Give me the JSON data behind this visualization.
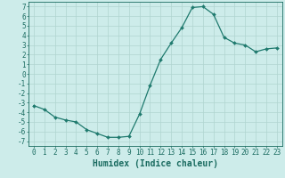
{
  "x": [
    0,
    1,
    2,
    3,
    4,
    5,
    6,
    7,
    8,
    9,
    10,
    11,
    12,
    13,
    14,
    15,
    16,
    17,
    18,
    19,
    20,
    21,
    22,
    23
  ],
  "y": [
    -3.3,
    -3.7,
    -4.5,
    -4.8,
    -5.0,
    -5.8,
    -6.2,
    -6.6,
    -6.6,
    -6.5,
    -4.2,
    -1.2,
    1.5,
    3.2,
    4.8,
    6.9,
    7.0,
    6.2,
    3.8,
    3.2,
    3.0,
    2.3,
    2.6,
    2.7
  ],
  "line_color": "#1f7a6e",
  "marker": "D",
  "marker_size": 2.0,
  "bg_color": "#cdecea",
  "grid_color": "#b0d4d0",
  "xlabel": "Humidex (Indice chaleur)",
  "xlim": [
    -0.5,
    23.5
  ],
  "ylim": [
    -7.5,
    7.5
  ],
  "yticks": [
    -7,
    -6,
    -5,
    -4,
    -3,
    -2,
    -1,
    0,
    1,
    2,
    3,
    4,
    5,
    6,
    7
  ],
  "xticks": [
    0,
    1,
    2,
    3,
    4,
    5,
    6,
    7,
    8,
    9,
    10,
    11,
    12,
    13,
    14,
    15,
    16,
    17,
    18,
    19,
    20,
    21,
    22,
    23
  ],
  "tick_color": "#1a6b60",
  "tick_fontsize": 5.5,
  "xlabel_fontsize": 7.0
}
